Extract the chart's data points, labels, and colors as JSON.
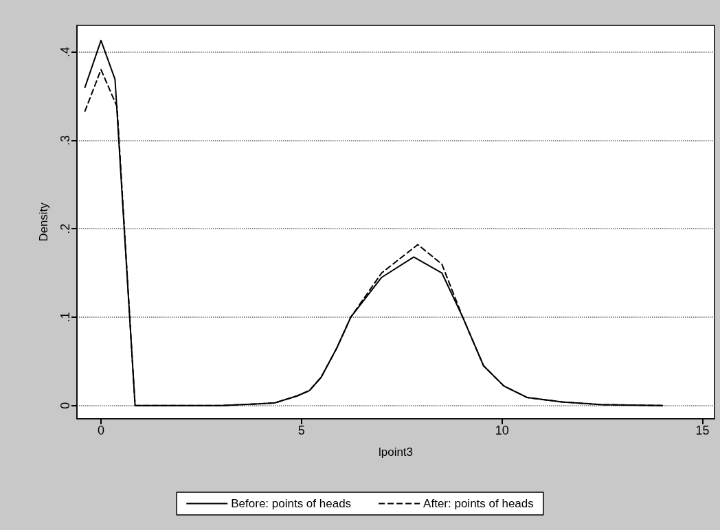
{
  "chart_data": {
    "type": "line",
    "xlabel": "lpoint3",
    "ylabel": "Density",
    "xlim": [
      -0.6,
      15.3
    ],
    "xticks": [
      0,
      5,
      10,
      15
    ],
    "ylim": [
      -0.015,
      0.43
    ],
    "yticks": [
      0,
      {
        "value": 0.1,
        "label": ".1"
      },
      {
        "value": 0.2,
        "label": ".2"
      },
      {
        "value": 0.3,
        "label": ".3"
      },
      {
        "value": 0.4,
        "label": ".4"
      }
    ],
    "grid": "y",
    "legend": "bottom",
    "marker": "none",
    "series": [
      {
        "name": "Before: points of heads",
        "color": "#000000",
        "line_style": "solid",
        "x": [
          -0.4,
          0,
          0.35,
          0.85,
          2,
          3,
          4,
          4.34,
          4.9,
          5.2,
          5.49,
          5.88,
          6.23,
          7,
          7.8,
          8.5,
          9.02,
          9.54,
          10.05,
          10.63,
          11.5,
          12.5,
          14
        ],
        "values": [
          0.36,
          0.413,
          0.369,
          0,
          0,
          0,
          0.002,
          0.003,
          0.011,
          0.017,
          0.032,
          0.065,
          0.1,
          0.145,
          0.168,
          0.15,
          0.1,
          0.045,
          0.022,
          0.009,
          0.004,
          0.001,
          0
        ]
      },
      {
        "name": "After: points of heads",
        "color": "#000000",
        "line_style": "dashed",
        "x": [
          -0.4,
          0,
          0.4,
          0.85,
          2,
          3,
          4,
          4.34,
          4.9,
          5.2,
          5.49,
          5.88,
          6.23,
          7,
          7.9,
          8.5,
          9.02,
          9.54,
          10.05,
          10.63,
          11.5,
          12.5,
          14
        ],
        "values": [
          0.333,
          0.38,
          0.338,
          0,
          0,
          0,
          0.002,
          0.003,
          0.011,
          0.017,
          0.032,
          0.065,
          0.1,
          0.15,
          0.182,
          0.16,
          0.1,
          0.045,
          0.022,
          0.009,
          0.004,
          0.001,
          0
        ]
      }
    ]
  }
}
